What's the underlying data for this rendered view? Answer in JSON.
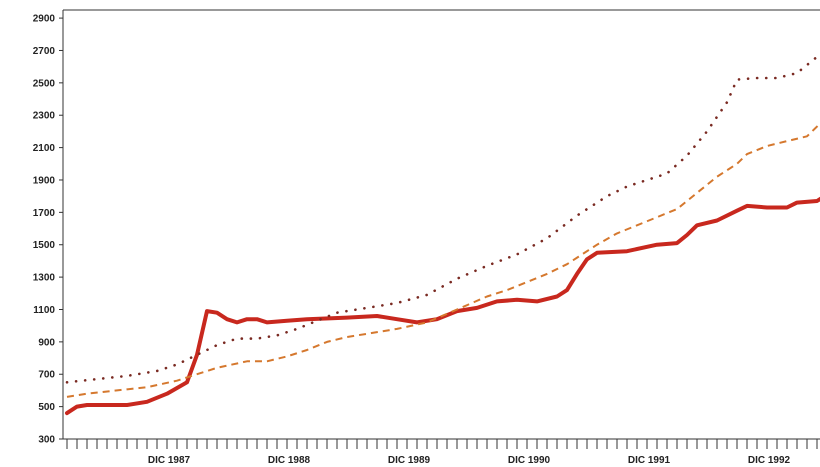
{
  "chart_data": {
    "type": "line",
    "title": "",
    "xlabel": "",
    "ylabel": "",
    "ylim": [
      300,
      2950
    ],
    "yticks": [
      300,
      500,
      700,
      900,
      1100,
      1300,
      1500,
      1700,
      1900,
      2100,
      2300,
      2500,
      2700,
      2900
    ],
    "x_ticks": [
      {
        "label": "DIC 1987",
        "value": 12
      },
      {
        "label": "DIC 1988",
        "value": 24
      },
      {
        "label": "DIC 1989",
        "value": 36
      },
      {
        "label": "DIC 1990",
        "value": 48
      },
      {
        "label": "DIC 1991",
        "value": 60
      },
      {
        "label": "DIC 1992",
        "value": 72
      }
    ],
    "xlim": [
      0,
      75
    ],
    "grid": false,
    "series": [
      {
        "style": "solid",
        "color": "#c8281e",
        "points": [
          [
            0,
            460
          ],
          [
            1,
            500
          ],
          [
            2,
            510
          ],
          [
            4,
            510
          ],
          [
            6,
            510
          ],
          [
            8,
            530
          ],
          [
            10,
            580
          ],
          [
            12,
            650
          ],
          [
            13,
            820
          ],
          [
            14,
            1090
          ],
          [
            15,
            1080
          ],
          [
            16,
            1040
          ],
          [
            17,
            1020
          ],
          [
            18,
            1040
          ],
          [
            19,
            1040
          ],
          [
            20,
            1020
          ],
          [
            22,
            1030
          ],
          [
            24,
            1040
          ],
          [
            28,
            1050
          ],
          [
            31,
            1060
          ],
          [
            33,
            1040
          ],
          [
            35,
            1020
          ],
          [
            37,
            1040
          ],
          [
            39,
            1090
          ],
          [
            41,
            1110
          ],
          [
            43,
            1150
          ],
          [
            45,
            1160
          ],
          [
            47,
            1150
          ],
          [
            49,
            1180
          ],
          [
            50,
            1220
          ],
          [
            51,
            1320
          ],
          [
            52,
            1410
          ],
          [
            53,
            1450
          ],
          [
            56,
            1460
          ],
          [
            59,
            1500
          ],
          [
            61,
            1510
          ],
          [
            62,
            1560
          ],
          [
            63,
            1620
          ],
          [
            65,
            1650
          ],
          [
            67,
            1710
          ],
          [
            68,
            1740
          ],
          [
            70,
            1730
          ],
          [
            72,
            1730
          ],
          [
            73,
            1760
          ],
          [
            75,
            1770
          ],
          [
            76,
            1810
          ]
        ]
      },
      {
        "style": "dashed",
        "color": "#d5782e",
        "points": [
          [
            0,
            560
          ],
          [
            2,
            580
          ],
          [
            5,
            600
          ],
          [
            8,
            620
          ],
          [
            11,
            660
          ],
          [
            13,
            700
          ],
          [
            15,
            740
          ],
          [
            18,
            780
          ],
          [
            20,
            780
          ],
          [
            22,
            810
          ],
          [
            24,
            850
          ],
          [
            26,
            900
          ],
          [
            28,
            930
          ],
          [
            30,
            950
          ],
          [
            33,
            980
          ],
          [
            36,
            1020
          ],
          [
            39,
            1100
          ],
          [
            42,
            1180
          ],
          [
            44,
            1220
          ],
          [
            46,
            1270
          ],
          [
            48,
            1320
          ],
          [
            50,
            1380
          ],
          [
            53,
            1500
          ],
          [
            55,
            1570
          ],
          [
            57,
            1620
          ],
          [
            59,
            1670
          ],
          [
            61,
            1720
          ],
          [
            63,
            1820
          ],
          [
            65,
            1920
          ],
          [
            67,
            2000
          ],
          [
            68,
            2060
          ],
          [
            70,
            2110
          ],
          [
            72,
            2140
          ],
          [
            74,
            2170
          ],
          [
            76,
            2290
          ],
          [
            78,
            2400
          ],
          [
            80,
            2480
          ]
        ]
      },
      {
        "style": "dotted",
        "color": "#7a2a22",
        "points": [
          [
            0,
            650
          ],
          [
            3,
            670
          ],
          [
            6,
            690
          ],
          [
            9,
            720
          ],
          [
            11,
            760
          ],
          [
            13,
            820
          ],
          [
            15,
            880
          ],
          [
            17,
            920
          ],
          [
            19,
            920
          ],
          [
            21,
            940
          ],
          [
            23,
            980
          ],
          [
            25,
            1030
          ],
          [
            27,
            1080
          ],
          [
            30,
            1110
          ],
          [
            33,
            1140
          ],
          [
            36,
            1190
          ],
          [
            39,
            1290
          ],
          [
            42,
            1370
          ],
          [
            45,
            1440
          ],
          [
            48,
            1540
          ],
          [
            51,
            1680
          ],
          [
            54,
            1800
          ],
          [
            56,
            1860
          ],
          [
            58,
            1900
          ],
          [
            60,
            1940
          ],
          [
            62,
            2050
          ],
          [
            64,
            2200
          ],
          [
            66,
            2380
          ],
          [
            67,
            2520
          ],
          [
            69,
            2530
          ],
          [
            71,
            2530
          ],
          [
            73,
            2560
          ],
          [
            75,
            2660
          ],
          [
            77,
            2740
          ],
          [
            80,
            2790
          ]
        ]
      }
    ]
  }
}
